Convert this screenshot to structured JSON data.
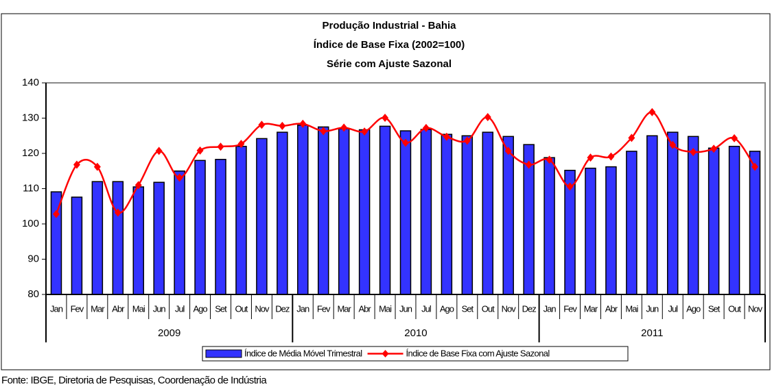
{
  "chart_data": {
    "type": "bar-line",
    "title": [
      "Produção Industrial - Bahia",
      "Índice de Base Fixa (2002=100)",
      "Série com Ajuste Sazonal"
    ],
    "categories": [
      "Jan",
      "Fev",
      "Mar",
      "Abr",
      "Mai",
      "Jun",
      "Jul",
      "Ago",
      "Set",
      "Out",
      "Nov",
      "Dez",
      "Jan",
      "Fev",
      "Mar",
      "Abr",
      "Mai",
      "Jun",
      "Jul",
      "Ago",
      "Set",
      "Out",
      "Nov",
      "Dez",
      "Jan",
      "Fev",
      "Mar",
      "Abr",
      "Mai",
      "Jun",
      "Jul",
      "Ago",
      "Set",
      "Out",
      "Nov"
    ],
    "year_groups": [
      "2009",
      "2010",
      "2011"
    ],
    "series": [
      {
        "name": "Índice de Média Móvel Trimestral",
        "type": "bar",
        "color": "#3333ff",
        "values": [
          109.1,
          107.6,
          112.0,
          112.0,
          110.5,
          111.8,
          115.0,
          118.0,
          118.3,
          122.0,
          124.2,
          126.0,
          128.0,
          127.5,
          127.0,
          126.7,
          127.7,
          126.4,
          126.8,
          125.4,
          125.0,
          126.0,
          124.8,
          122.5,
          118.8,
          115.2,
          115.8,
          116.2,
          120.6,
          125.0,
          126.0,
          124.8,
          121.5,
          122.0,
          120.6
        ]
      },
      {
        "name": "Índice de Base Fixa com Ajuste Sazonal",
        "type": "line",
        "color": "#ff0000",
        "values": [
          102.8,
          116.8,
          116.2,
          103.2,
          111.0,
          120.7,
          113.1,
          120.8,
          121.9,
          122.7,
          128.1,
          127.8,
          128.4,
          126.3,
          127.3,
          126.2,
          130.1,
          123.0,
          127.2,
          124.7,
          123.6,
          130.3,
          120.7,
          116.8,
          118.2,
          110.6,
          118.8,
          119.1,
          124.4,
          131.7,
          122.4,
          120.4,
          121.3,
          124.3,
          116.2
        ]
      }
    ],
    "ylim": [
      80,
      140
    ],
    "yticks": [
      80,
      90,
      100,
      110,
      120,
      130,
      140
    ],
    "source": "Fonte: IBGE, Diretoria de Pesquisas, Coordenação de Indústria"
  }
}
